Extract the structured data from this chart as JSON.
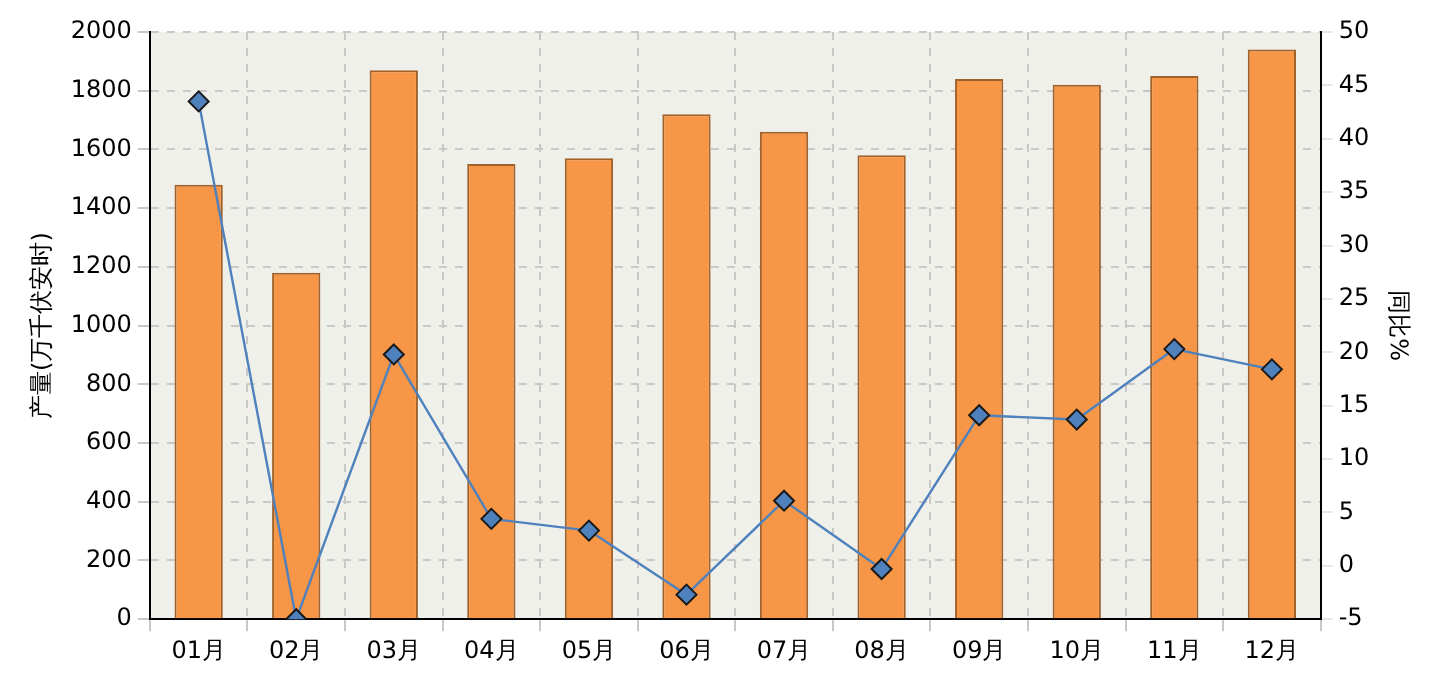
{
  "chart_data": {
    "type": "bar",
    "ylabel": "产量(万千伏安时)",
    "y2label": "同比%",
    "categories": [
      "01月",
      "02月",
      "03月",
      "04月",
      "05月",
      "06月",
      "07月",
      "08月",
      "09月",
      "10月",
      "11月",
      "12月"
    ],
    "series": [
      {
        "color": "#f79646",
        "values": [
          1480,
          1180,
          1870,
          1550,
          1570,
          1720,
          1660,
          1580,
          1840,
          1820,
          1850,
          1940
        ]
      },
      {
        "type": "line",
        "axis": "y2",
        "color": "#4f81bd",
        "marker": "diamond",
        "values": [
          43.5,
          -5,
          19.8,
          4.4,
          3.3,
          -2.7,
          6.1,
          -0.3,
          14.1,
          13.7,
          20.3,
          18.4
        ]
      }
    ],
    "ylim": [
      0,
      2000
    ],
    "yticks": [
      0,
      200,
      400,
      600,
      800,
      1000,
      1200,
      1400,
      1600,
      1800,
      2000
    ],
    "y2lim": [
      -5,
      50
    ],
    "y2ticks": [
      -5,
      0,
      5,
      10,
      15,
      20,
      25,
      30,
      35,
      40,
      45,
      50
    ],
    "grid": true,
    "legend": false
  }
}
